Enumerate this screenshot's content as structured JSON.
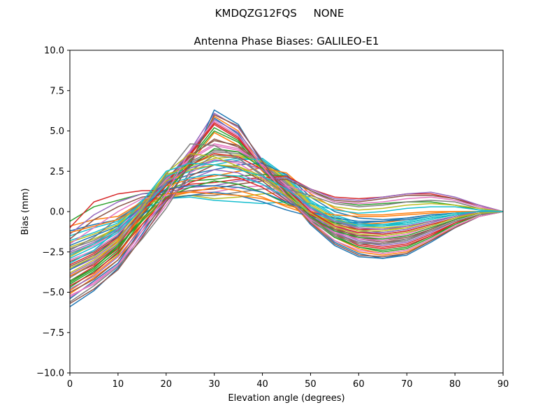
{
  "figure": {
    "suptitle": "KMDQZG12FQS     NONE"
  },
  "chart_data": {
    "type": "line",
    "title": "Antenna Phase Biases: GALILEO-E1",
    "xlabel": "Elevation angle (degrees)",
    "ylabel": "Bias (mm)",
    "xlim": [
      0,
      90
    ],
    "ylim": [
      -10,
      10
    ],
    "xticks": [
      0,
      10,
      20,
      30,
      40,
      50,
      60,
      70,
      80,
      90
    ],
    "yticks": [
      -10.0,
      -7.5,
      -5.0,
      -2.5,
      0.0,
      2.5,
      5.0,
      7.5,
      10.0
    ],
    "xtick_labels": [
      "0",
      "10",
      "20",
      "30",
      "40",
      "50",
      "60",
      "70",
      "80",
      "90"
    ],
    "ytick_labels": [
      "−10.0",
      "−7.5",
      "−5.0",
      "−2.5",
      "0.0",
      "2.5",
      "5.0",
      "7.5",
      "10.0"
    ],
    "grid": false,
    "legend": "none",
    "x": [
      0,
      5,
      10,
      15,
      20,
      25,
      30,
      35,
      40,
      45,
      50,
      55,
      60,
      65,
      70,
      75,
      80,
      85,
      90
    ],
    "palette": [
      "#1f77b4",
      "#ff7f0e",
      "#2ca02c",
      "#d62728",
      "#9467bd",
      "#8c564b",
      "#e377c2",
      "#7f7f7f",
      "#bcbd22",
      "#17becf"
    ],
    "series": [
      {
        "values": [
          -5.4,
          -4.3,
          -3.2,
          -1.0,
          1.2,
          3.5,
          5.8,
          4.8,
          2.6,
          0.9,
          -0.6,
          -1.9,
          -2.6,
          -2.9,
          -2.7,
          -1.9,
          -1.0,
          -0.3,
          0.0
        ]
      },
      {
        "values": [
          -4.9,
          -3.9,
          -2.7,
          -0.6,
          1.3,
          3.0,
          4.9,
          4.1,
          2.5,
          0.9,
          -0.5,
          -1.6,
          -2.3,
          -2.6,
          -2.4,
          -1.7,
          -0.9,
          -0.3,
          0.0
        ]
      },
      {
        "values": [
          -4.5,
          -3.6,
          -2.4,
          -0.3,
          1.6,
          3.3,
          5.2,
          4.4,
          2.8,
          1.0,
          -0.4,
          -1.5,
          -2.2,
          -2.4,
          -2.2,
          -1.5,
          -0.8,
          -0.2,
          0.0
        ]
      },
      {
        "values": [
          -4.0,
          -3.3,
          -2.1,
          -0.1,
          1.8,
          3.6,
          5.5,
          4.6,
          2.9,
          1.2,
          -0.3,
          -1.3,
          -2.0,
          -2.2,
          -2.0,
          -1.4,
          -0.7,
          -0.2,
          0.0
        ]
      },
      {
        "values": [
          -3.6,
          -2.9,
          -1.8,
          0.1,
          1.9,
          3.8,
          6.1,
          5.2,
          3.2,
          1.4,
          -0.1,
          -1.2,
          -1.8,
          -2.0,
          -1.8,
          -1.2,
          -0.6,
          -0.2,
          0.0
        ]
      },
      {
        "values": [
          -3.1,
          -2.5,
          -1.5,
          0.3,
          2.0,
          3.4,
          4.5,
          4.0,
          2.9,
          1.5,
          0.0,
          -1.0,
          -1.6,
          -1.8,
          -1.6,
          -1.1,
          -0.5,
          -0.1,
          0.0
        ]
      },
      {
        "values": [
          -2.7,
          -2.1,
          -1.2,
          0.4,
          2.1,
          3.2,
          4.1,
          3.8,
          3.0,
          1.6,
          0.2,
          -0.8,
          -1.4,
          -1.6,
          -1.4,
          -0.9,
          -0.4,
          -0.1,
          0.0
        ]
      },
      {
        "values": [
          -2.3,
          -1.8,
          -1.0,
          0.5,
          2.2,
          3.0,
          3.7,
          3.6,
          3.1,
          1.8,
          0.3,
          -0.6,
          -1.1,
          -1.3,
          -1.1,
          -0.7,
          -0.3,
          -0.1,
          0.0
        ]
      },
      {
        "values": [
          -1.9,
          -1.4,
          -0.8,
          0.6,
          2.3,
          2.8,
          3.3,
          3.4,
          3.2,
          2.0,
          0.5,
          -0.4,
          -0.9,
          -1.0,
          -0.9,
          -0.6,
          -0.3,
          0.0,
          0.0
        ]
      },
      {
        "values": [
          -1.5,
          -1.0,
          -0.6,
          0.7,
          2.0,
          2.5,
          2.9,
          3.2,
          3.3,
          2.2,
          0.7,
          -0.2,
          -0.7,
          -0.8,
          -0.7,
          -0.4,
          -0.2,
          0.0,
          0.0
        ]
      },
      {
        "values": [
          -5.9,
          -4.9,
          -3.5,
          -1.4,
          0.8,
          2.9,
          6.3,
          5.4,
          3.0,
          1.0,
          -0.8,
          -2.1,
          -2.8,
          -2.9,
          -2.6,
          -1.8,
          -1.0,
          -0.3,
          0.0
        ]
      },
      {
        "values": [
          -5.1,
          -4.1,
          -3.0,
          -0.8,
          1.0,
          3.1,
          5.9,
          5.0,
          2.7,
          0.8,
          -0.7,
          -1.8,
          -2.5,
          -2.7,
          -2.5,
          -1.8,
          -0.9,
          -0.3,
          0.0
        ]
      },
      {
        "values": [
          -4.7,
          -3.7,
          -2.6,
          -0.5,
          1.4,
          3.2,
          5.0,
          4.3,
          2.6,
          1.0,
          -0.5,
          -1.6,
          -2.2,
          -2.5,
          -2.3,
          -1.6,
          -0.8,
          -0.2,
          0.0
        ]
      },
      {
        "values": [
          -4.3,
          -3.4,
          -2.3,
          -0.2,
          1.7,
          3.5,
          5.4,
          4.5,
          2.8,
          1.1,
          -0.3,
          -1.4,
          -2.1,
          -2.3,
          -2.1,
          -1.5,
          -0.7,
          -0.2,
          0.0
        ]
      },
      {
        "values": [
          -3.9,
          -3.1,
          -2.0,
          0.0,
          1.9,
          3.7,
          5.7,
          4.9,
          3.0,
          1.3,
          -0.2,
          -1.3,
          -1.9,
          -2.1,
          -1.9,
          -1.3,
          -0.6,
          -0.2,
          0.0
        ]
      },
      {
        "values": [
          -3.4,
          -2.7,
          -1.7,
          0.2,
          2.0,
          3.5,
          4.4,
          4.1,
          3.0,
          1.5,
          0.0,
          -1.1,
          -1.7,
          -1.9,
          -1.7,
          -1.1,
          -0.5,
          -0.1,
          0.0
        ]
      },
      {
        "values": [
          -3.0,
          -2.4,
          -1.4,
          0.3,
          2.0,
          3.3,
          4.2,
          3.9,
          2.9,
          1.6,
          0.1,
          -0.9,
          -1.5,
          -1.7,
          -1.5,
          -1.0,
          -0.5,
          -0.1,
          0.0
        ]
      },
      {
        "values": [
          -2.6,
          -2.0,
          -1.2,
          0.4,
          2.1,
          3.1,
          3.8,
          3.7,
          3.0,
          1.7,
          0.3,
          -0.7,
          -1.2,
          -1.4,
          -1.2,
          -0.8,
          -0.4,
          -0.1,
          0.0
        ]
      },
      {
        "values": [
          -2.2,
          -1.7,
          -1.0,
          0.5,
          2.2,
          2.9,
          3.5,
          3.5,
          3.1,
          1.9,
          0.4,
          -0.5,
          -1.0,
          -1.1,
          -1.0,
          -0.6,
          -0.3,
          0.0,
          0.0
        ]
      },
      {
        "values": [
          -1.8,
          -1.3,
          -0.7,
          0.6,
          2.2,
          2.7,
          3.1,
          3.3,
          3.2,
          2.1,
          0.6,
          -0.3,
          -0.8,
          -0.9,
          -0.8,
          -0.5,
          -0.2,
          0.0,
          0.0
        ]
      },
      {
        "values": [
          -1.2,
          -0.8,
          -0.5,
          0.6,
          1.8,
          2.3,
          2.6,
          2.9,
          3.0,
          2.3,
          0.9,
          0.0,
          -0.4,
          -0.5,
          -0.4,
          -0.2,
          -0.1,
          0.0,
          0.0
        ]
      },
      {
        "values": [
          -0.9,
          -0.5,
          -0.3,
          0.6,
          1.6,
          2.0,
          2.2,
          2.5,
          2.7,
          2.4,
          1.1,
          0.2,
          -0.2,
          -0.2,
          -0.1,
          0.0,
          0.0,
          0.0,
          0.0
        ]
      },
      {
        "values": [
          -0.6,
          0.3,
          0.7,
          1.1,
          1.3,
          1.9,
          2.0,
          2.2,
          2.3,
          2.2,
          1.3,
          0.6,
          0.4,
          0.5,
          0.6,
          0.6,
          0.4,
          0.1,
          0.0
        ]
      },
      {
        "values": [
          -1.0,
          0.6,
          1.1,
          1.3,
          1.3,
          1.7,
          1.8,
          2.0,
          2.1,
          2.2,
          1.4,
          0.9,
          0.8,
          0.9,
          1.1,
          1.1,
          0.8,
          0.4,
          0.0
        ]
      },
      {
        "values": [
          -1.4,
          -0.2,
          0.6,
          1.1,
          1.2,
          1.5,
          1.6,
          1.9,
          2.0,
          2.1,
          1.4,
          0.8,
          0.7,
          0.9,
          1.1,
          1.2,
          0.9,
          0.4,
          0.0
        ]
      },
      {
        "values": [
          -1.7,
          -0.5,
          0.3,
          0.9,
          1.1,
          1.3,
          1.4,
          1.7,
          1.9,
          2.0,
          1.3,
          0.7,
          0.6,
          0.8,
          1.0,
          1.0,
          0.8,
          0.3,
          0.0
        ]
      },
      {
        "values": [
          -2.0,
          -1.0,
          0.0,
          0.8,
          1.0,
          1.2,
          1.2,
          1.5,
          1.6,
          1.6,
          1.2,
          0.6,
          0.5,
          0.6,
          0.8,
          0.9,
          0.7,
          0.3,
          0.0
        ]
      },
      {
        "values": [
          -2.4,
          -1.6,
          -0.4,
          0.5,
          0.9,
          1.0,
          1.0,
          1.2,
          1.4,
          1.4,
          1.0,
          0.5,
          0.3,
          0.4,
          0.6,
          0.7,
          0.6,
          0.2,
          0.0
        ]
      },
      {
        "values": [
          -2.8,
          -2.0,
          -0.8,
          0.3,
          0.9,
          1.0,
          0.8,
          0.9,
          1.1,
          1.2,
          0.9,
          0.3,
          0.1,
          0.2,
          0.4,
          0.5,
          0.4,
          0.2,
          0.0
        ]
      },
      {
        "values": [
          -3.2,
          -2.4,
          -1.1,
          0.1,
          0.8,
          0.9,
          0.7,
          0.6,
          0.5,
          0.6,
          0.5,
          0.1,
          -0.1,
          0.0,
          0.2,
          0.3,
          0.3,
          0.1,
          0.0
        ]
      },
      {
        "values": [
          -3.6,
          -2.8,
          -1.5,
          -0.2,
          0.8,
          1.0,
          1.2,
          1.0,
          0.6,
          0.1,
          -0.3,
          -0.6,
          -0.7,
          -0.6,
          -0.4,
          -0.2,
          -0.1,
          0.0,
          0.0
        ]
      },
      {
        "values": [
          -4.0,
          -3.2,
          -1.8,
          -0.4,
          0.9,
          1.2,
          1.5,
          1.3,
          0.9,
          0.3,
          -0.2,
          -0.6,
          -0.8,
          -0.7,
          -0.5,
          -0.3,
          -0.1,
          0.0,
          0.0
        ]
      },
      {
        "values": [
          -4.3,
          -3.5,
          -2.1,
          -0.6,
          0.9,
          1.5,
          1.9,
          1.7,
          1.2,
          0.5,
          -0.2,
          -0.7,
          -0.9,
          -0.9,
          -0.7,
          -0.4,
          -0.2,
          0.0,
          0.0
        ]
      },
      {
        "values": [
          -4.6,
          -3.8,
          -2.5,
          -0.8,
          0.8,
          1.8,
          2.3,
          2.1,
          1.5,
          0.6,
          -0.2,
          -0.8,
          -1.1,
          -1.1,
          -0.9,
          -0.6,
          -0.3,
          -0.1,
          0.0
        ]
      },
      {
        "values": [
          -4.8,
          -4.0,
          -2.8,
          -1.0,
          0.7,
          2.0,
          2.6,
          2.4,
          1.7,
          0.7,
          -0.3,
          -1.0,
          -1.3,
          -1.3,
          -1.1,
          -0.7,
          -0.3,
          -0.1,
          0.0
        ]
      },
      {
        "values": [
          -5.0,
          -4.2,
          -3.0,
          -1.2,
          0.6,
          2.2,
          2.9,
          2.7,
          1.9,
          0.7,
          -0.4,
          -1.1,
          -1.5,
          -1.5,
          -1.3,
          -0.9,
          -0.4,
          -0.1,
          0.0
        ]
      },
      {
        "values": [
          -5.3,
          -4.4,
          -3.3,
          -1.5,
          0.4,
          2.4,
          3.2,
          3.0,
          2.1,
          0.8,
          -0.5,
          -1.3,
          -1.7,
          -1.8,
          -1.5,
          -1.0,
          -0.5,
          -0.1,
          0.0
        ]
      },
      {
        "values": [
          -5.6,
          -4.6,
          -3.4,
          -1.7,
          0.2,
          2.5,
          3.5,
          3.3,
          2.3,
          0.9,
          -0.6,
          -1.5,
          -2.0,
          -2.0,
          -1.7,
          -1.2,
          -0.6,
          -0.2,
          0.0
        ]
      },
      {
        "values": [
          -3.8,
          -3.0,
          -1.9,
          -0.1,
          1.9,
          2.6,
          2.9,
          2.8,
          2.2,
          1.2,
          0.0,
          -0.8,
          -1.2,
          -1.2,
          -1.0,
          -0.6,
          -0.3,
          -0.1,
          0.0
        ]
      },
      {
        "values": [
          -2.9,
          -2.2,
          -1.3,
          0.2,
          1.7,
          2.1,
          2.3,
          2.2,
          1.7,
          0.9,
          0.0,
          -0.6,
          -0.9,
          -0.9,
          -0.7,
          -0.4,
          -0.2,
          0.0,
          0.0
        ]
      },
      {
        "values": [
          -2.1,
          -1.5,
          -0.9,
          0.3,
          1.4,
          1.6,
          1.6,
          1.5,
          1.2,
          0.6,
          0.0,
          -0.4,
          -0.6,
          -0.6,
          -0.5,
          -0.3,
          -0.1,
          0.0,
          0.0
        ]
      },
      {
        "values": [
          -1.3,
          -0.9,
          -0.5,
          0.3,
          1.1,
          1.2,
          1.1,
          1.0,
          0.8,
          0.4,
          0.0,
          -0.2,
          -0.3,
          -0.3,
          -0.2,
          -0.1,
          0.0,
          0.0,
          0.0
        ]
      },
      {
        "values": [
          -4.4,
          -3.5,
          -2.2,
          -0.5,
          1.3,
          2.8,
          3.9,
          3.7,
          2.7,
          1.2,
          -0.3,
          -1.2,
          -1.6,
          -1.7,
          -1.5,
          -1.0,
          -0.5,
          -0.1,
          0.0
        ]
      },
      {
        "values": [
          -3.3,
          -2.6,
          -1.6,
          0.0,
          1.6,
          2.9,
          3.6,
          3.4,
          2.6,
          1.4,
          0.0,
          -0.9,
          -1.3,
          -1.4,
          -1.2,
          -0.8,
          -0.4,
          -0.1,
          0.0
        ]
      },
      {
        "values": [
          -2.5,
          -1.9,
          -1.1,
          0.3,
          1.8,
          2.7,
          3.2,
          3.1,
          2.6,
          1.5,
          0.2,
          -0.6,
          -1.0,
          -1.1,
          -0.9,
          -0.6,
          -0.3,
          0.0,
          0.0
        ]
      },
      {
        "values": [
          -5.7,
          -4.8,
          -3.6,
          -1.6,
          0.6,
          3.0,
          6.0,
          5.3,
          3.1,
          1.1,
          -0.7,
          -2.0,
          -2.7,
          -2.8,
          -2.6,
          -1.8,
          -1.0,
          -0.3,
          0.0
        ]
      },
      {
        "values": [
          -5.2,
          -4.5,
          -3.3,
          -1.2,
          1.1,
          3.8,
          5.6,
          4.7,
          2.8,
          1.0,
          -0.6,
          -1.8,
          -2.4,
          -2.6,
          -2.4,
          -1.7,
          -0.9,
          -0.3,
          0.0
        ]
      },
      {
        "values": [
          -4.1,
          -3.2,
          -2.0,
          0.0,
          2.3,
          4.2,
          4.1,
          3.3,
          2.2,
          0.9,
          -0.4,
          -1.4,
          -1.9,
          -2.0,
          -1.8,
          -1.2,
          -0.6,
          -0.2,
          0.0
        ]
      },
      {
        "values": [
          -3.5,
          -2.8,
          -1.7,
          0.2,
          2.4,
          3.6,
          3.4,
          2.8,
          2.0,
          1.0,
          -0.1,
          -1.0,
          -1.4,
          -1.5,
          -1.3,
          -0.9,
          -0.4,
          -0.1,
          0.0
        ]
      },
      {
        "values": [
          -2.7,
          -2.0,
          -1.0,
          0.6,
          2.5,
          3.0,
          2.9,
          2.6,
          2.2,
          1.4,
          0.3,
          -0.5,
          -0.8,
          -0.8,
          -0.6,
          -0.3,
          -0.1,
          0.0,
          0.0
        ]
      }
    ]
  }
}
